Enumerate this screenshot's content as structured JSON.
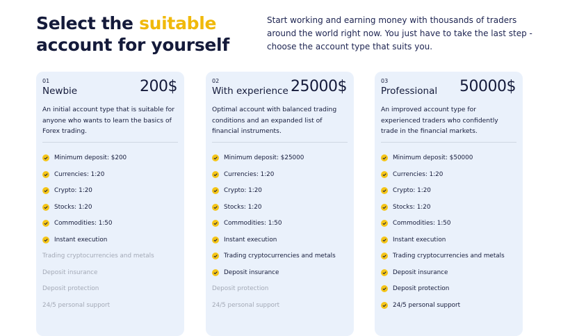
{
  "header": {
    "title_start": "Select the",
    "title_highlight": "suitable",
    "title_end": "account for yourself",
    "description": "Start working and earning money with thousands of traders around the world right now. You just have to take the last step - choose the account type that suits you."
  },
  "cards": [
    {
      "number": "01",
      "name": "Newbie",
      "price": "200$",
      "description": "An initial account type that is suitable for anyone who wants to learn the basics of Forex trading.",
      "features": [
        {
          "text": "Minimum deposit: $200",
          "included": true
        },
        {
          "text": "Currencies: 1:20",
          "included": true
        },
        {
          "text": "Crypto: 1:20",
          "included": true
        },
        {
          "text": "Stocks: 1:20",
          "included": true
        },
        {
          "text": "Commodities: 1:50",
          "included": true
        },
        {
          "text": "Instant execution",
          "included": true
        },
        {
          "text": "Trading cryptocurrencies and metals",
          "included": false
        },
        {
          "text": "Deposit insurance",
          "included": false
        },
        {
          "text": "Deposit protection",
          "included": false
        },
        {
          "text": "24/5 personal support",
          "included": false
        }
      ]
    },
    {
      "number": "02",
      "name": "With experience",
      "price": "25000$",
      "description": "Optimal account with balanced trading conditions and an expanded list of financial instruments.",
      "features": [
        {
          "text": "Minimum deposit: $25000",
          "included": true
        },
        {
          "text": "Currencies: 1:20",
          "included": true
        },
        {
          "text": "Crypto: 1:20",
          "included": true
        },
        {
          "text": "Stocks: 1:20",
          "included": true
        },
        {
          "text": "Commodities: 1:50",
          "included": true
        },
        {
          "text": "Instant execution",
          "included": true
        },
        {
          "text": "Trading cryptocurrencies and metals",
          "included": true
        },
        {
          "text": "Deposit insurance",
          "included": true
        },
        {
          "text": "Deposit protection",
          "included": false
        },
        {
          "text": "24/5 personal support",
          "included": false
        }
      ]
    },
    {
      "number": "03",
      "name": "Professional",
      "price": "50000$",
      "description": "An improved account type for experienced traders who confidently trade in the financial markets.",
      "features": [
        {
          "text": "Minimum deposit: $50000",
          "included": true
        },
        {
          "text": "Currencies: 1:20",
          "included": true
        },
        {
          "text": "Crypto: 1:20",
          "included": true
        },
        {
          "text": "Stocks: 1:20",
          "included": true
        },
        {
          "text": "Commodities: 1:50",
          "included": true
        },
        {
          "text": "Instant execution",
          "included": true
        },
        {
          "text": "Trading cryptocurrencies and metals",
          "included": true
        },
        {
          "text": "Deposit insurance",
          "included": true
        },
        {
          "text": "Deposit protection",
          "included": true
        },
        {
          "text": "24/5 personal support",
          "included": true
        }
      ]
    }
  ]
}
